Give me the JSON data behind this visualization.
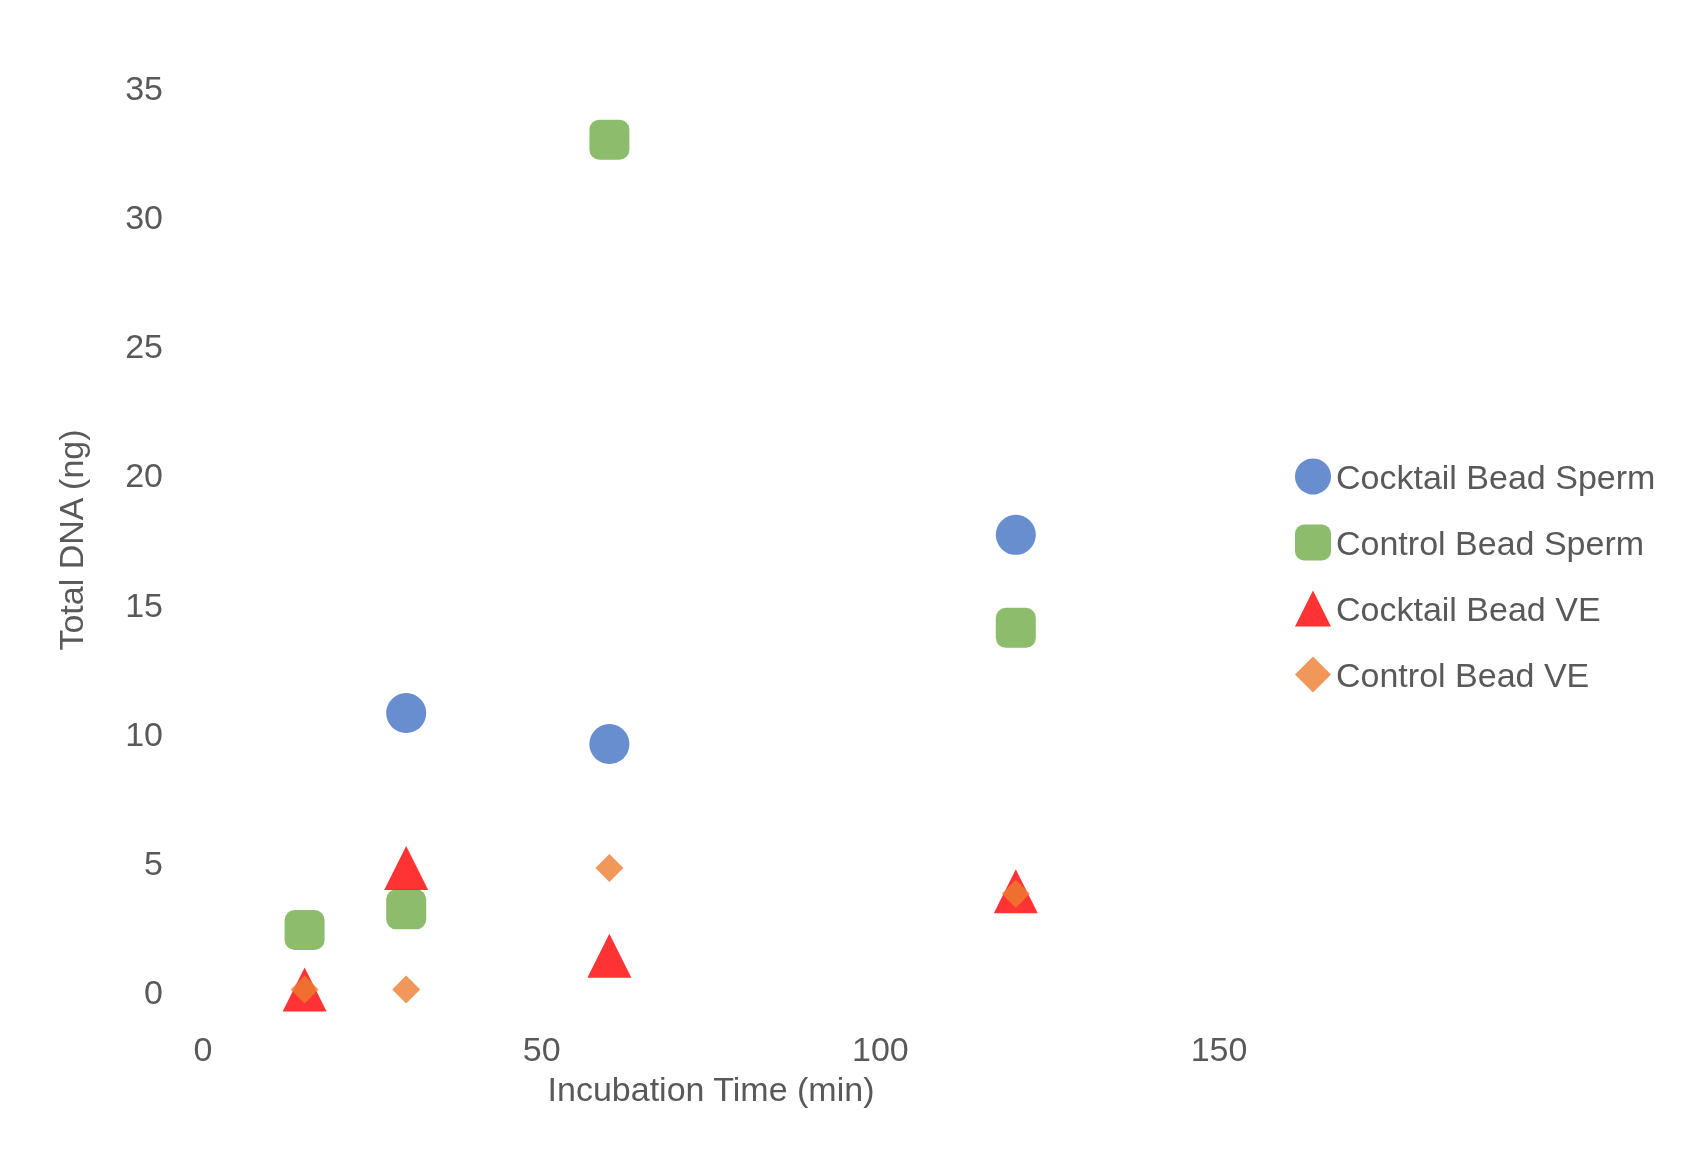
{
  "chart_data": {
    "type": "scatter",
    "xlabel": "Incubation Time (min)",
    "ylabel": "Total DNA (ng)",
    "xlim": [
      0,
      150
    ],
    "xticks": [
      0,
      50,
      100,
      150
    ],
    "ylim": [
      0,
      35
    ],
    "yticks": [
      0,
      5,
      10,
      15,
      20,
      25,
      30,
      35
    ],
    "grid": false,
    "legend": "right",
    "series": [
      {
        "name": "Cocktail Bead Sperm",
        "color": "#4472c4",
        "marker": "circle",
        "x": [
          30,
          60,
          120
        ],
        "values": [
          10.8,
          9.6,
          17.7
        ]
      },
      {
        "name": "Control Bead Sperm",
        "color": "#70ad47",
        "marker": "square",
        "x": [
          15,
          30,
          60,
          120
        ],
        "values": [
          2.4,
          3.2,
          33.0,
          14.1
        ]
      },
      {
        "name": "Cocktail Bead VE",
        "color": "#ff0000",
        "marker": "triangle",
        "x": [
          15,
          30,
          60,
          120
        ],
        "values": [
          0.1,
          4.8,
          1.4,
          3.9
        ]
      },
      {
        "name": "Control Bead VE",
        "color": "#ed7d31",
        "marker": "diamond",
        "x": [
          15,
          30,
          60,
          120
        ],
        "values": [
          0.1,
          0.1,
          4.8,
          3.8
        ]
      }
    ]
  }
}
